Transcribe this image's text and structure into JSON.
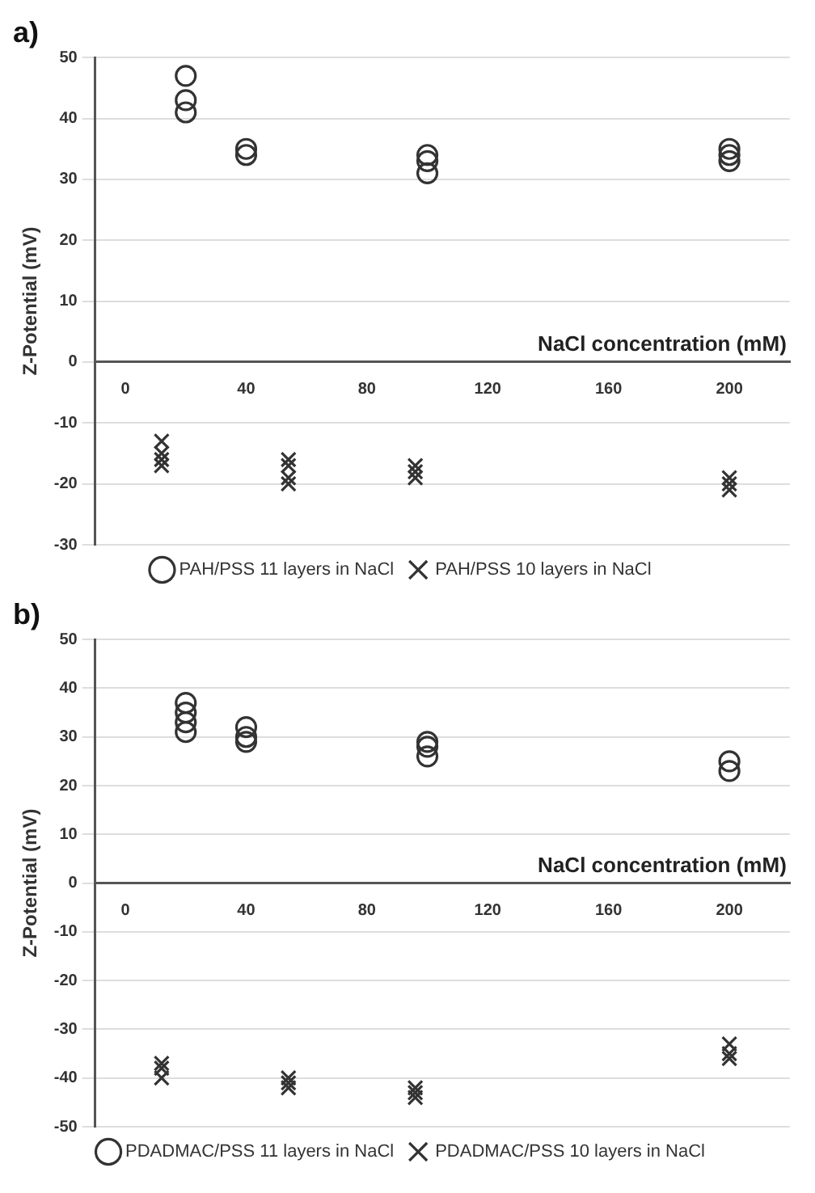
{
  "chart_data": [
    {
      "type": "scatter",
      "title": "a)",
      "xlabel": "NaCl concentration (mM)",
      "ylabel": "Z-Potential (mV)",
      "xlim": [
        -10,
        220
      ],
      "xticks": [
        0,
        40,
        80,
        120,
        160,
        200
      ],
      "ylim": [
        -30,
        50
      ],
      "yticks": [
        -30,
        -20,
        -10,
        0,
        10,
        20,
        30,
        40,
        50
      ],
      "grid": "y",
      "legend": "bottom",
      "series": [
        {
          "name": "PAH/PSS 11 layers in NaCl",
          "color": "#333333",
          "marker": "circle",
          "x": [
            20,
            20,
            20,
            40,
            40,
            100,
            100,
            100,
            200,
            200,
            200
          ],
          "values": [
            47,
            43,
            41,
            35,
            34,
            34,
            33,
            31,
            35,
            34,
            33
          ]
        },
        {
          "name": "PAH/PSS 10 layers in NaCl",
          "color": "#333333",
          "marker": "cross",
          "x": [
            12,
            12,
            12,
            12,
            54,
            54,
            54,
            54,
            96,
            96,
            96,
            200,
            200,
            200
          ],
          "values": [
            -13,
            -15,
            -16,
            -17,
            -16,
            -17,
            -19,
            -20,
            -17,
            -18,
            -19,
            -19,
            -20,
            -21
          ]
        }
      ]
    },
    {
      "type": "scatter",
      "title": "b)",
      "xlabel": "NaCl concentration (mM)",
      "ylabel": "Z-Potential (mV)",
      "xlim": [
        -10,
        220
      ],
      "xticks": [
        0,
        40,
        80,
        120,
        160,
        200
      ],
      "ylim": [
        -50,
        50
      ],
      "yticks": [
        -50,
        -40,
        -30,
        -20,
        -10,
        0,
        10,
        20,
        30,
        40,
        50
      ],
      "grid": "y",
      "legend": "bottom",
      "series": [
        {
          "name": "PDADMAC/PSS 11 layers in NaCl",
          "color": "#333333",
          "marker": "circle",
          "x": [
            20,
            20,
            20,
            20,
            40,
            40,
            40,
            100,
            100,
            100,
            200,
            200
          ],
          "values": [
            37,
            35,
            33,
            31,
            32,
            30,
            29,
            29,
            28,
            26,
            25,
            23
          ]
        },
        {
          "name": "PDADMAC/PSS 10 layers in NaCl",
          "color": "#333333",
          "marker": "cross",
          "x": [
            12,
            12,
            12,
            54,
            54,
            54,
            96,
            96,
            96,
            200,
            200,
            200
          ],
          "values": [
            -37,
            -38,
            -40,
            -40,
            -41,
            -42,
            -42,
            -43,
            -44,
            -33,
            -35,
            -36
          ]
        }
      ]
    }
  ]
}
